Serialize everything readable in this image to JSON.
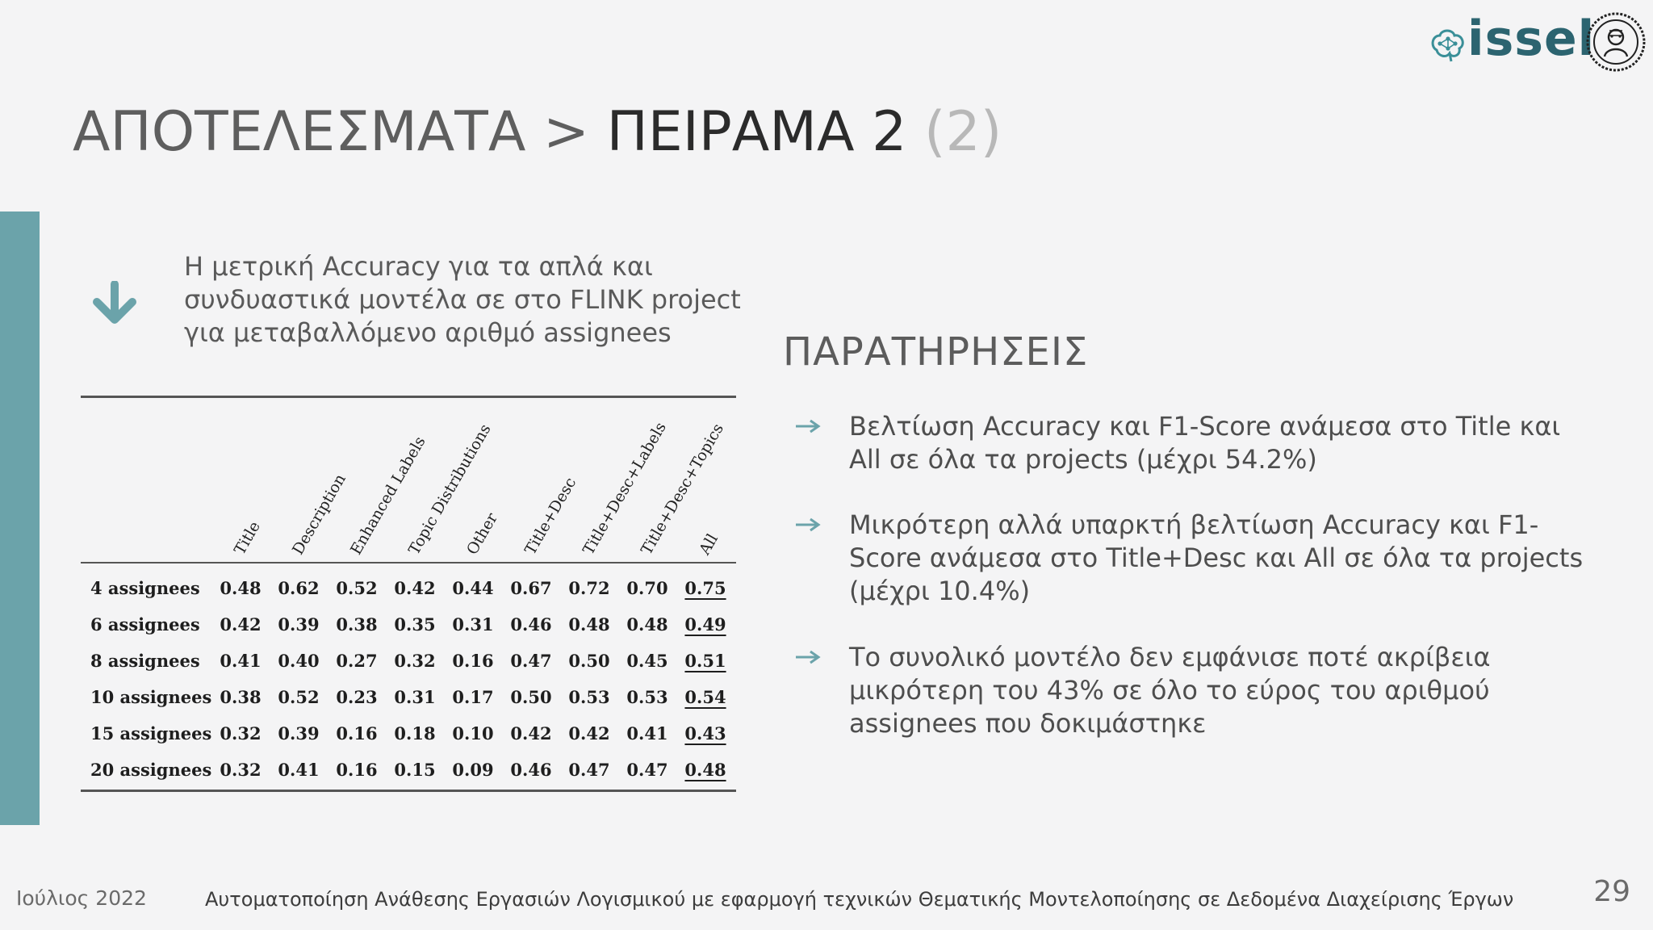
{
  "logo": {
    "text": "issel",
    "icon": "brain-network-icon",
    "seal": "university-seal-icon",
    "brand_color": "#2c6470"
  },
  "title": {
    "part1": "ΑΠΟΤΕΛΕΣΜΑΤΑ",
    "separator": ">",
    "part2": "ΠΕΙΡΑΜΑ 2",
    "part3": "(2)"
  },
  "accent_color": "#6ba3aa",
  "description": {
    "icon": "down-arrow-icon",
    "lines": [
      "Η μετρική Accuracy για τα απλά και",
      "συνδυαστικά μοντέλα σε στο FLINK project",
      "για μεταβαλλόμενο αριθμό assignees"
    ]
  },
  "table": {
    "columns": [
      "Title",
      "Description",
      "Enhanced Labels",
      "Topic Distributions",
      "Other",
      "Title+Desc",
      "Title+Desc+Labels",
      "Title+Desc+Topics",
      "All"
    ],
    "rows": [
      {
        "label": "4 assignees",
        "values": [
          "0.48",
          "0.62",
          "0.52",
          "0.42",
          "0.44",
          "0.67",
          "0.72",
          "0.70",
          "0.75"
        ]
      },
      {
        "label": "6 assignees",
        "values": [
          "0.42",
          "0.39",
          "0.38",
          "0.35",
          "0.31",
          "0.46",
          "0.48",
          "0.48",
          "0.49"
        ]
      },
      {
        "label": "8 assignees",
        "values": [
          "0.41",
          "0.40",
          "0.27",
          "0.32",
          "0.16",
          "0.47",
          "0.50",
          "0.45",
          "0.51"
        ]
      },
      {
        "label": "10 assignees",
        "values": [
          "0.38",
          "0.52",
          "0.23",
          "0.31",
          "0.17",
          "0.50",
          "0.53",
          "0.53",
          "0.54"
        ]
      },
      {
        "label": "15 assignees",
        "values": [
          "0.32",
          "0.39",
          "0.16",
          "0.18",
          "0.10",
          "0.42",
          "0.42",
          "0.41",
          "0.43"
        ]
      },
      {
        "label": "20 assignees",
        "values": [
          "0.32",
          "0.41",
          "0.16",
          "0.15",
          "0.09",
          "0.46",
          "0.47",
          "0.47",
          "0.48"
        ]
      }
    ]
  },
  "observations": {
    "title": "ΠΑΡΑΤΗΡΗΣΕΙΣ",
    "bullet_icon": "right-arrow-icon",
    "items": [
      {
        "lines": [
          "Βελτίωση Accuracy και F1-Score ανάμεσα στο Title και",
          "All σε όλα τα projects (μέχρι 54.2%)"
        ]
      },
      {
        "lines": [
          "Μικρότερη αλλά υπαρκτή βελτίωση Accuracy και F1-",
          "Score ανάμεσα στο Title+Desc και All σε όλα τα projects",
          "(μέχρι 10.4%)"
        ]
      },
      {
        "lines": [
          "Το συνολικό μοντέλο δεν εμφάνισε ποτέ ακρίβεια",
          "μικρότερη του 43% σε όλο το εύρος του αριθμού",
          "assignees που δοκιμάστηκε"
        ]
      }
    ]
  },
  "footer": {
    "date": "Ιούλιος 2022",
    "caption": "Αυτοματοποίηση Ανάθεσης Εργασιών Λογισμικού με εφαρμογή τεχνικών Θεματικής Μοντελοποίησης σε Δεδομένα Διαχείρισης Έργων",
    "page_number": "29"
  }
}
